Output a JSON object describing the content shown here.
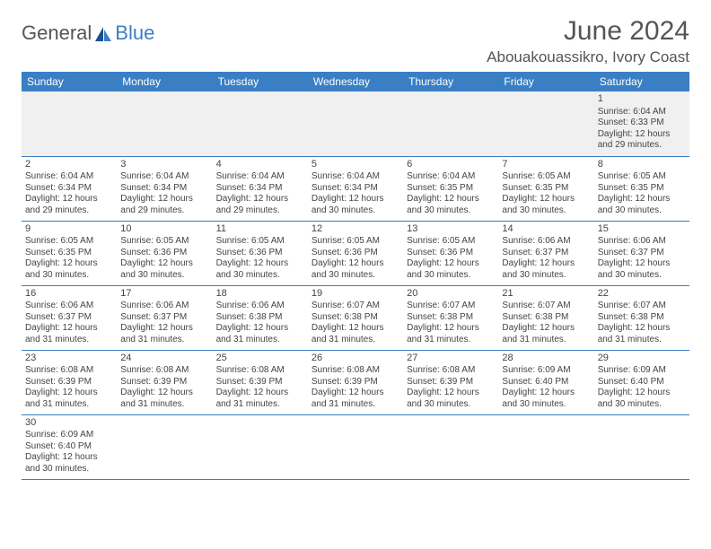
{
  "brand": {
    "part1": "General",
    "part2": "Blue"
  },
  "title": "June 2024",
  "location": "Abouakouassikro, Ivory Coast",
  "header_bg": "#3a7fc4",
  "header_fg": "#ffffff",
  "border_color": "#3a7fc4",
  "first_row_bg": "#f0f0f0",
  "body_font_size": 10,
  "daynum_font_size": 11,
  "days": [
    "Sunday",
    "Monday",
    "Tuesday",
    "Wednesday",
    "Thursday",
    "Friday",
    "Saturday"
  ],
  "weeks": [
    [
      null,
      null,
      null,
      null,
      null,
      null,
      {
        "n": "1",
        "sr": "Sunrise: 6:04 AM",
        "ss": "Sunset: 6:33 PM",
        "dl": "Daylight: 12 hours and 29 minutes."
      }
    ],
    [
      {
        "n": "2",
        "sr": "Sunrise: 6:04 AM",
        "ss": "Sunset: 6:34 PM",
        "dl": "Daylight: 12 hours and 29 minutes."
      },
      {
        "n": "3",
        "sr": "Sunrise: 6:04 AM",
        "ss": "Sunset: 6:34 PM",
        "dl": "Daylight: 12 hours and 29 minutes."
      },
      {
        "n": "4",
        "sr": "Sunrise: 6:04 AM",
        "ss": "Sunset: 6:34 PM",
        "dl": "Daylight: 12 hours and 29 minutes."
      },
      {
        "n": "5",
        "sr": "Sunrise: 6:04 AM",
        "ss": "Sunset: 6:34 PM",
        "dl": "Daylight: 12 hours and 30 minutes."
      },
      {
        "n": "6",
        "sr": "Sunrise: 6:04 AM",
        "ss": "Sunset: 6:35 PM",
        "dl": "Daylight: 12 hours and 30 minutes."
      },
      {
        "n": "7",
        "sr": "Sunrise: 6:05 AM",
        "ss": "Sunset: 6:35 PM",
        "dl": "Daylight: 12 hours and 30 minutes."
      },
      {
        "n": "8",
        "sr": "Sunrise: 6:05 AM",
        "ss": "Sunset: 6:35 PM",
        "dl": "Daylight: 12 hours and 30 minutes."
      }
    ],
    [
      {
        "n": "9",
        "sr": "Sunrise: 6:05 AM",
        "ss": "Sunset: 6:35 PM",
        "dl": "Daylight: 12 hours and 30 minutes."
      },
      {
        "n": "10",
        "sr": "Sunrise: 6:05 AM",
        "ss": "Sunset: 6:36 PM",
        "dl": "Daylight: 12 hours and 30 minutes."
      },
      {
        "n": "11",
        "sr": "Sunrise: 6:05 AM",
        "ss": "Sunset: 6:36 PM",
        "dl": "Daylight: 12 hours and 30 minutes."
      },
      {
        "n": "12",
        "sr": "Sunrise: 6:05 AM",
        "ss": "Sunset: 6:36 PM",
        "dl": "Daylight: 12 hours and 30 minutes."
      },
      {
        "n": "13",
        "sr": "Sunrise: 6:05 AM",
        "ss": "Sunset: 6:36 PM",
        "dl": "Daylight: 12 hours and 30 minutes."
      },
      {
        "n": "14",
        "sr": "Sunrise: 6:06 AM",
        "ss": "Sunset: 6:37 PM",
        "dl": "Daylight: 12 hours and 30 minutes."
      },
      {
        "n": "15",
        "sr": "Sunrise: 6:06 AM",
        "ss": "Sunset: 6:37 PM",
        "dl": "Daylight: 12 hours and 30 minutes."
      }
    ],
    [
      {
        "n": "16",
        "sr": "Sunrise: 6:06 AM",
        "ss": "Sunset: 6:37 PM",
        "dl": "Daylight: 12 hours and 31 minutes."
      },
      {
        "n": "17",
        "sr": "Sunrise: 6:06 AM",
        "ss": "Sunset: 6:37 PM",
        "dl": "Daylight: 12 hours and 31 minutes."
      },
      {
        "n": "18",
        "sr": "Sunrise: 6:06 AM",
        "ss": "Sunset: 6:38 PM",
        "dl": "Daylight: 12 hours and 31 minutes."
      },
      {
        "n": "19",
        "sr": "Sunrise: 6:07 AM",
        "ss": "Sunset: 6:38 PM",
        "dl": "Daylight: 12 hours and 31 minutes."
      },
      {
        "n": "20",
        "sr": "Sunrise: 6:07 AM",
        "ss": "Sunset: 6:38 PM",
        "dl": "Daylight: 12 hours and 31 minutes."
      },
      {
        "n": "21",
        "sr": "Sunrise: 6:07 AM",
        "ss": "Sunset: 6:38 PM",
        "dl": "Daylight: 12 hours and 31 minutes."
      },
      {
        "n": "22",
        "sr": "Sunrise: 6:07 AM",
        "ss": "Sunset: 6:38 PM",
        "dl": "Daylight: 12 hours and 31 minutes."
      }
    ],
    [
      {
        "n": "23",
        "sr": "Sunrise: 6:08 AM",
        "ss": "Sunset: 6:39 PM",
        "dl": "Daylight: 12 hours and 31 minutes."
      },
      {
        "n": "24",
        "sr": "Sunrise: 6:08 AM",
        "ss": "Sunset: 6:39 PM",
        "dl": "Daylight: 12 hours and 31 minutes."
      },
      {
        "n": "25",
        "sr": "Sunrise: 6:08 AM",
        "ss": "Sunset: 6:39 PM",
        "dl": "Daylight: 12 hours and 31 minutes."
      },
      {
        "n": "26",
        "sr": "Sunrise: 6:08 AM",
        "ss": "Sunset: 6:39 PM",
        "dl": "Daylight: 12 hours and 31 minutes."
      },
      {
        "n": "27",
        "sr": "Sunrise: 6:08 AM",
        "ss": "Sunset: 6:39 PM",
        "dl": "Daylight: 12 hours and 30 minutes."
      },
      {
        "n": "28",
        "sr": "Sunrise: 6:09 AM",
        "ss": "Sunset: 6:40 PM",
        "dl": "Daylight: 12 hours and 30 minutes."
      },
      {
        "n": "29",
        "sr": "Sunrise: 6:09 AM",
        "ss": "Sunset: 6:40 PM",
        "dl": "Daylight: 12 hours and 30 minutes."
      }
    ],
    [
      {
        "n": "30",
        "sr": "Sunrise: 6:09 AM",
        "ss": "Sunset: 6:40 PM",
        "dl": "Daylight: 12 hours and 30 minutes."
      },
      null,
      null,
      null,
      null,
      null,
      null
    ]
  ]
}
